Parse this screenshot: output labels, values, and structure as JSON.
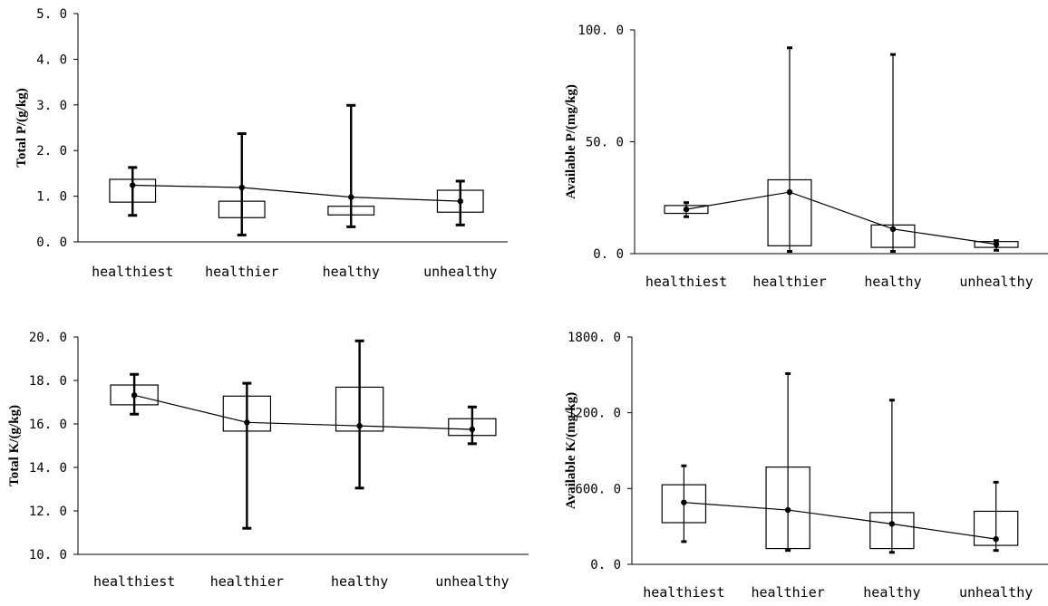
{
  "chart_data": [
    {
      "type": "box",
      "title": "",
      "xlabel": "",
      "ylabel": "Total P/(g/kg)",
      "ylim": [
        0,
        5
      ],
      "yticks": [
        "0.0",
        "1.0",
        "2.0",
        "3.0",
        "4.0",
        "5.0"
      ],
      "categories": [
        "healthiest",
        "healthier",
        "healthy",
        "unhealthy"
      ],
      "boxes": [
        {
          "min": 0.58,
          "q1": 0.87,
          "q3": 1.37,
          "max": 1.63,
          "mean": 1.24
        },
        {
          "min": 0.15,
          "q1": 0.53,
          "q3": 0.89,
          "max": 2.37,
          "mean": 1.19
        },
        {
          "min": 0.33,
          "q1": 0.59,
          "q3": 0.78,
          "max": 2.99,
          "mean": 0.98
        },
        {
          "min": 0.37,
          "q1": 0.65,
          "q3": 1.13,
          "max": 1.33,
          "mean": 0.89
        }
      ]
    },
    {
      "type": "box",
      "title": "",
      "xlabel": "",
      "ylabel": "Available P/(mg/kg)",
      "ylim": [
        0,
        100
      ],
      "yticks": [
        "0.0",
        "50.0",
        "100.0"
      ],
      "categories": [
        "healthiest",
        "healthier",
        "healthy",
        "unhealthy"
      ],
      "boxes": [
        {
          "min": 16.5,
          "q1": 18.0,
          "q3": 21.5,
          "max": 22.8,
          "mean": 19.8
        },
        {
          "min": 1.0,
          "q1": 3.5,
          "q3": 33.0,
          "max": 92.0,
          "mean": 27.5
        },
        {
          "min": 1.0,
          "q1": 2.8,
          "q3": 12.8,
          "max": 89.0,
          "mean": 11.0
        },
        {
          "min": 1.5,
          "q1": 2.8,
          "q3": 5.4,
          "max": 5.8,
          "mean": 4.2
        }
      ]
    },
    {
      "type": "box",
      "title": "",
      "xlabel": "",
      "ylabel": "Total K/(g/kg)",
      "ylim": [
        10,
        20
      ],
      "yticks": [
        "10.0",
        "12.0",
        "14.0",
        "16.0",
        "18.0",
        "20.0"
      ],
      "categories": [
        "healthiest",
        "healthier",
        "healthy",
        "unhealthy"
      ],
      "boxes": [
        {
          "min": 16.45,
          "q1": 16.88,
          "q3": 17.79,
          "max": 18.28,
          "mean": 17.32
        },
        {
          "min": 11.2,
          "q1": 15.67,
          "q3": 17.28,
          "max": 17.87,
          "mean": 16.07
        },
        {
          "min": 13.05,
          "q1": 15.67,
          "q3": 17.69,
          "max": 19.82,
          "mean": 15.91
        },
        {
          "min": 15.09,
          "q1": 15.47,
          "q3": 16.24,
          "max": 16.78,
          "mean": 15.75
        }
      ]
    },
    {
      "type": "box",
      "title": "",
      "xlabel": "",
      "ylabel": "Available K/(mg/kg)",
      "ylim": [
        0,
        1800
      ],
      "yticks": [
        "0.0",
        "600.0",
        "1200.0",
        "1800.0"
      ],
      "categories": [
        "healthiest",
        "healthier",
        "healthy",
        "unhealthy"
      ],
      "boxes": [
        {
          "min": 180,
          "q1": 330,
          "q3": 630,
          "max": 780,
          "mean": 490
        },
        {
          "min": 110,
          "q1": 125,
          "q3": 770,
          "max": 1510,
          "mean": 430
        },
        {
          "min": 95,
          "q1": 125,
          "q3": 410,
          "max": 1300,
          "mean": 320
        },
        {
          "min": 110,
          "q1": 150,
          "q3": 420,
          "max": 650,
          "mean": 200
        }
      ]
    }
  ]
}
